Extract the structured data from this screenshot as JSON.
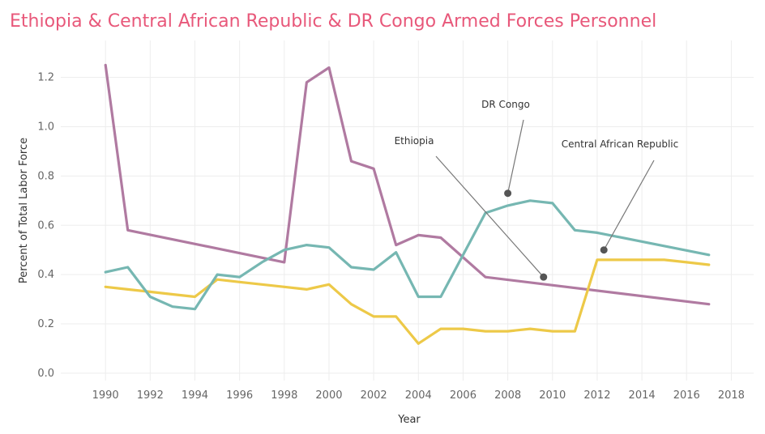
{
  "colors": {
    "title": "#e8587a",
    "ethiopia": "#b07aa1",
    "car": "#edc948",
    "drc": "#76b7b2",
    "grid": "#ededed",
    "annotation_line": "#777777",
    "annotation_dot": "#555555"
  },
  "chart_data": {
    "type": "line",
    "title": "Ethiopia & Central African Republic & DR Congo Armed Forces Personnel",
    "xlabel": "Year",
    "ylabel": "Percent of Total Labor Force",
    "xlim": [
      1988,
      2019
    ],
    "ylim": [
      -0.03,
      1.35
    ],
    "x_ticks": [
      "1990",
      "1992",
      "1994",
      "1996",
      "1998",
      "2000",
      "2002",
      "2004",
      "2006",
      "2008",
      "2010",
      "2012",
      "2014",
      "2016",
      "2018"
    ],
    "y_ticks": [
      "0.0",
      "0.2",
      "0.4",
      "0.6",
      "0.8",
      "1.0",
      "1.2"
    ],
    "grid": true,
    "legend": "none",
    "series": [
      {
        "name": "Ethiopia",
        "color_key": "ethiopia",
        "points": [
          [
            1990,
            1.25
          ],
          [
            1991,
            0.58
          ],
          [
            1998,
            0.45
          ],
          [
            1999,
            1.18
          ],
          [
            2000,
            1.24
          ],
          [
            2001,
            0.86
          ],
          [
            2002,
            0.83
          ],
          [
            2003,
            0.52
          ],
          [
            2004,
            0.56
          ],
          [
            2005,
            0.55
          ],
          [
            2007,
            0.39
          ],
          [
            2017,
            0.28
          ]
        ]
      },
      {
        "name": "Central African Republic",
        "color_key": "car",
        "points": [
          [
            1990,
            0.35
          ],
          [
            1991,
            0.34
          ],
          [
            1992,
            0.33
          ],
          [
            1993,
            0.32
          ],
          [
            1994,
            0.31
          ],
          [
            1995,
            0.38
          ],
          [
            1996,
            0.37
          ],
          [
            1997,
            0.36
          ],
          [
            1998,
            0.35
          ],
          [
            1999,
            0.34
          ],
          [
            2000,
            0.36
          ],
          [
            2001,
            0.28
          ],
          [
            2002,
            0.23
          ],
          [
            2003,
            0.23
          ],
          [
            2004,
            0.12
          ],
          [
            2005,
            0.18
          ],
          [
            2006,
            0.18
          ],
          [
            2007,
            0.17
          ],
          [
            2008,
            0.17
          ],
          [
            2009,
            0.18
          ],
          [
            2010,
            0.17
          ],
          [
            2011,
            0.17
          ],
          [
            2012,
            0.46
          ],
          [
            2013,
            0.46
          ],
          [
            2014,
            0.46
          ],
          [
            2015,
            0.46
          ],
          [
            2016,
            0.45
          ],
          [
            2017,
            0.44
          ]
        ]
      },
      {
        "name": "DR Congo",
        "color_key": "drc",
        "points": [
          [
            1990,
            0.41
          ],
          [
            1991,
            0.43
          ],
          [
            1992,
            0.31
          ],
          [
            1993,
            0.27
          ],
          [
            1994,
            0.26
          ],
          [
            1995,
            0.4
          ],
          [
            1996,
            0.39
          ],
          [
            1997,
            0.45
          ],
          [
            1998,
            0.5
          ],
          [
            1999,
            0.52
          ],
          [
            2000,
            0.51
          ],
          [
            2001,
            0.43
          ],
          [
            2002,
            0.42
          ],
          [
            2003,
            0.49
          ],
          [
            2004,
            0.31
          ],
          [
            2005,
            0.31
          ],
          [
            2007,
            0.65
          ],
          [
            2008,
            0.68
          ],
          [
            2009,
            0.7
          ],
          [
            2010,
            0.69
          ],
          [
            2011,
            0.58
          ],
          [
            2012,
            0.57
          ],
          [
            2017,
            0.48
          ]
        ]
      }
    ],
    "annotations": [
      {
        "label": "DR Congo",
        "point_x": 2008.0,
        "point_y": 0.73
      },
      {
        "label": "Ethiopia",
        "point_x": 2009.6,
        "point_y": 0.39
      },
      {
        "label": "Central African Republic",
        "point_x": 2012.3,
        "point_y": 0.5
      }
    ]
  }
}
